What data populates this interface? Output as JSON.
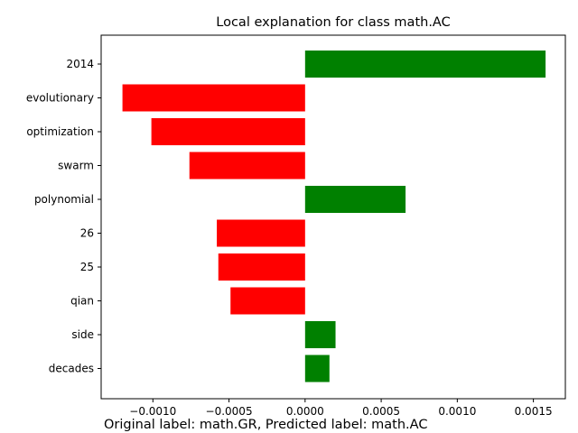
{
  "chart_data": {
    "type": "bar",
    "orientation": "horizontal",
    "title": "Local explanation for class math.AC",
    "categories": [
      "2014",
      "evolutionary",
      "optimization",
      "swarm",
      "polynomial",
      "26",
      "25",
      "qian",
      "side",
      "decades"
    ],
    "values": [
      0.00158,
      -0.0012,
      -0.00101,
      -0.00076,
      0.00066,
      -0.00058,
      -0.00057,
      -0.00049,
      0.0002,
      0.00016
    ],
    "xlim": [
      -0.00134,
      0.00171
    ],
    "xticks": [
      -0.001,
      -0.0005,
      0.0,
      0.0005,
      0.001,
      0.0015
    ],
    "xtick_labels": [
      "−0.0010",
      "−0.0005",
      "0.0000",
      "0.0005",
      "0.0010",
      "0.0015"
    ],
    "positive_color": "#008000",
    "negative_color": "#ff0000",
    "grid": false,
    "caption": "Original label: math.GR, Predicted label: math.AC"
  }
}
